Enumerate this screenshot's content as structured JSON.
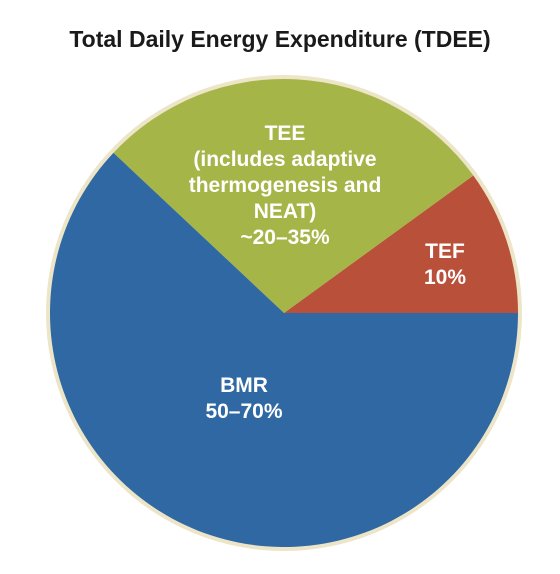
{
  "chart_data": {
    "type": "pie",
    "title": "Total Daily Energy Expenditure (TDEE)",
    "slices": [
      {
        "key": "tef",
        "value": 10,
        "color": "#b9503a",
        "label_lines": [
          "TEF",
          "10%"
        ]
      },
      {
        "key": "tee",
        "value": 28,
        "color": "#a6b548",
        "label_lines": [
          "TEE",
          "(includes adaptive",
          "thermogenesis and",
          "NEAT)",
          "~20–35%"
        ]
      },
      {
        "key": "bmr",
        "value": 62,
        "color": "#2f68a3",
        "label_lines": [
          "BMR",
          "50–70%"
        ]
      }
    ],
    "border_color": "#ede5c8"
  }
}
